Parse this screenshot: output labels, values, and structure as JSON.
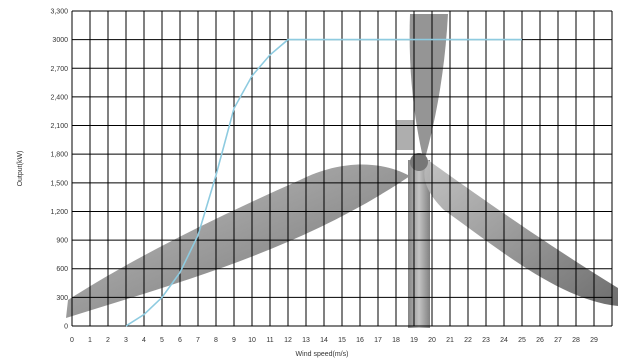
{
  "chart_data": {
    "type": "line",
    "title": "",
    "xlabel": "Wind speed(m/s)",
    "ylabel": "Output(kW)",
    "xlim": [
      0,
      30
    ],
    "ylim": [
      0,
      3300
    ],
    "xticks": [
      "0",
      "1",
      "2",
      "3",
      "4",
      "5",
      "6",
      "7",
      "8",
      "9",
      "10",
      "11",
      "12",
      "13",
      "14",
      "15",
      "16",
      "17",
      "18",
      "19",
      "20",
      "21",
      "22",
      "23",
      "24",
      "25",
      "26",
      "27",
      "28",
      "29"
    ],
    "yticks": [
      "0",
      "300",
      "600",
      "900",
      "1,200",
      "1,500",
      "1,800",
      "2,100",
      "2,400",
      "2,700",
      "3000",
      "3,300"
    ],
    "yvalues": [
      0,
      300,
      600,
      900,
      1200,
      1500,
      1800,
      2100,
      2400,
      2700,
      3000,
      3300
    ],
    "grid": true,
    "line_color": "#8ecbe0",
    "background_image": "wind-turbine-silhouette",
    "series": [
      {
        "x": [
          3,
          4,
          5,
          6,
          7,
          8,
          9,
          10,
          11,
          12,
          13,
          15,
          20,
          25
        ],
        "y": [
          0,
          120,
          300,
          560,
          950,
          1580,
          2280,
          2620,
          2840,
          3000,
          3000,
          3000,
          3000,
          3000
        ]
      }
    ]
  }
}
